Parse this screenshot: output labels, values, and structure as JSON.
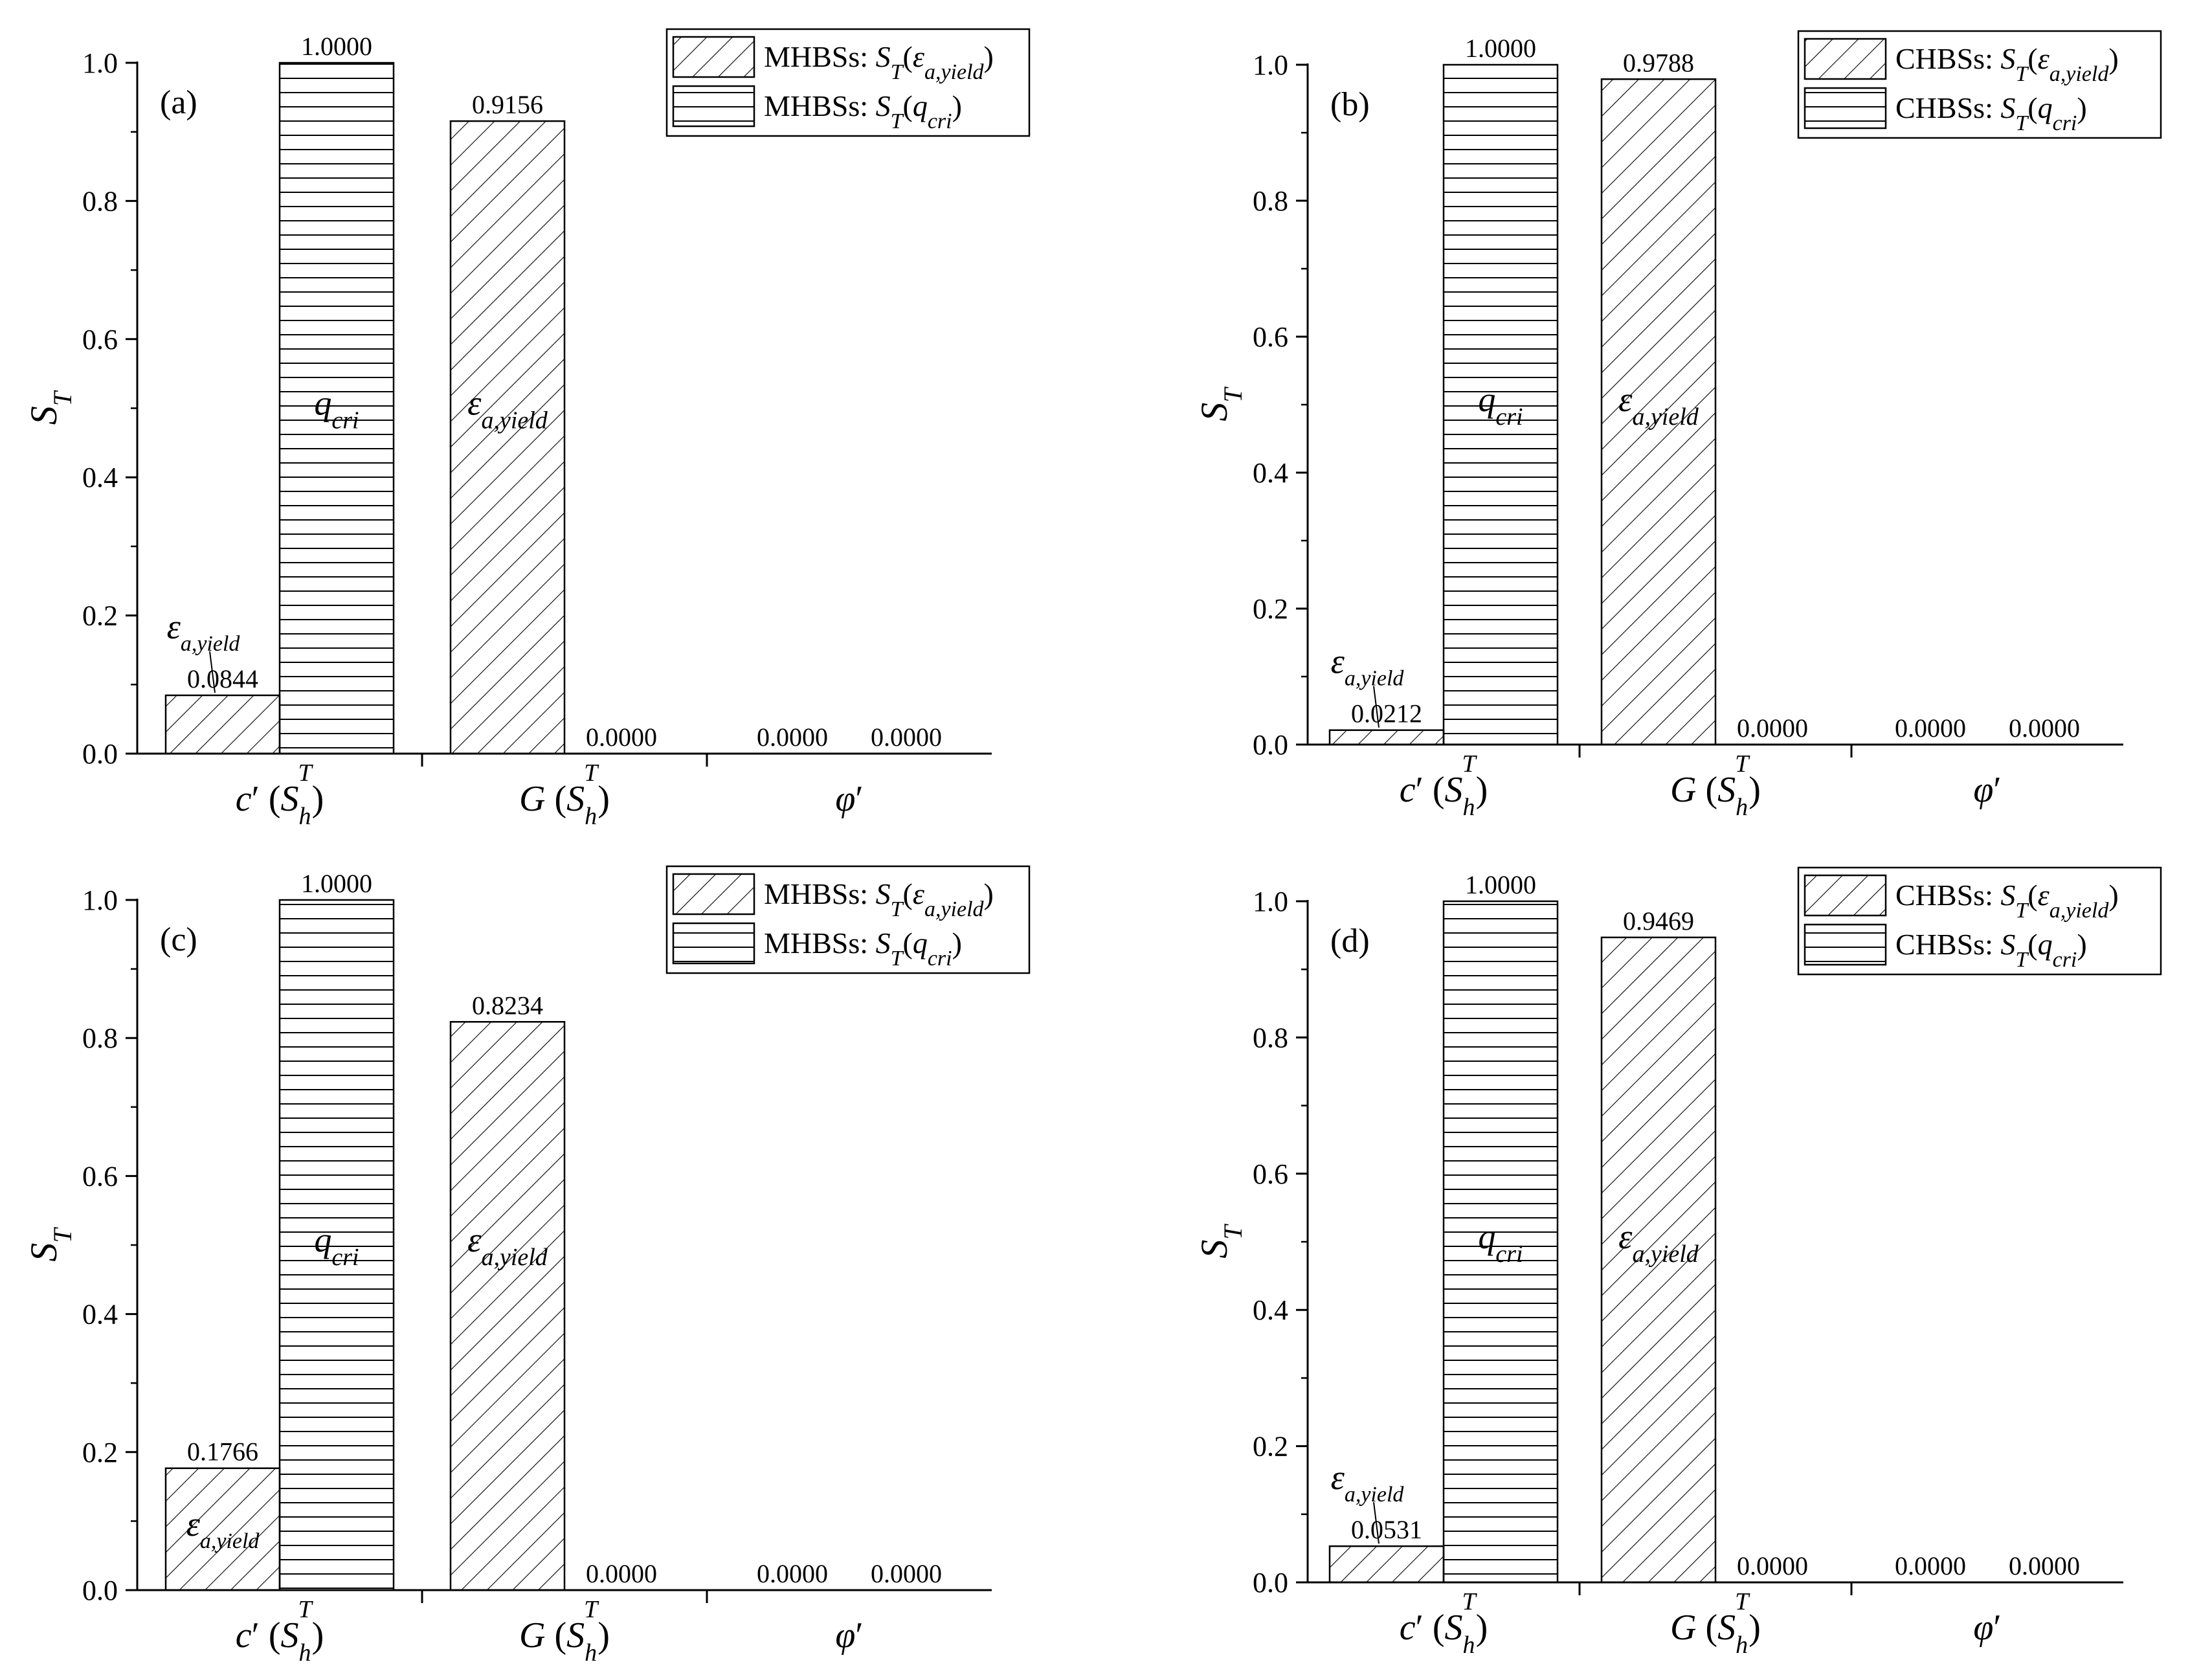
{
  "chart_data": [
    {
      "type": "bar",
      "panel_label": "(a)",
      "categories": [
        "c′ (S_h^T)",
        "G (S_h^T)",
        "φ′"
      ],
      "series": [
        {
          "name": "MHBSs: S_T(ε_a,yield)",
          "values": [
            0.0844,
            0.9156,
            0.0
          ],
          "pattern": "diagonal-hatch"
        },
        {
          "name": "MHBSs: S_T(q_cri)",
          "values": [
            1.0,
            0.0,
            0.0
          ],
          "pattern": "horizontal-hatch"
        }
      ],
      "value_labels": [
        [
          "0.0844",
          "0.9156",
          "0.0000"
        ],
        [
          "1.0000",
          "0.0000",
          "0.0000"
        ]
      ],
      "ylabel": "S_T",
      "ylim": [
        0,
        1.0
      ],
      "yticks": [
        "0.0",
        "0.2",
        "0.4",
        "0.6",
        "0.8",
        "1.0"
      ],
      "legend_position": "top-right",
      "annotations": [
        "εa,yield",
        "qcri",
        "εa,yield"
      ]
    },
    {
      "type": "bar",
      "panel_label": "(b)",
      "categories": [
        "c′ (S_h^T)",
        "G (S_h^T)",
        "φ′"
      ],
      "series": [
        {
          "name": "CHBSs: S_T(ε_a,yield)",
          "values": [
            0.0212,
            0.9788,
            0.0
          ],
          "pattern": "diagonal-hatch"
        },
        {
          "name": "CHBSs: S_T(q_cri)",
          "values": [
            1.0,
            0.0,
            0.0
          ],
          "pattern": "horizontal-hatch"
        }
      ],
      "value_labels": [
        [
          "0.0212",
          "0.9788",
          "0.0000"
        ],
        [
          "1.0000",
          "0.0000",
          "0.0000"
        ]
      ],
      "ylabel": "S_T",
      "ylim": [
        0,
        1.0
      ],
      "yticks": [
        "0.0",
        "0.2",
        "0.4",
        "0.6",
        "0.8",
        "1.0"
      ],
      "legend_position": "top-right",
      "annotations": [
        "εa,yield",
        "qcri",
        "εa,yield"
      ]
    },
    {
      "type": "bar",
      "panel_label": "(c)",
      "categories": [
        "c′ (S_h^T)",
        "G (S_h^T)",
        "φ′"
      ],
      "series": [
        {
          "name": "MHBSs: S_T(ε_a,yield)",
          "values": [
            0.1766,
            0.8234,
            0.0
          ],
          "pattern": "diagonal-hatch"
        },
        {
          "name": "MHBSs: S_T(q_cri)",
          "values": [
            1.0,
            0.0,
            0.0
          ],
          "pattern": "horizontal-hatch"
        }
      ],
      "value_labels": [
        [
          "0.1766",
          "0.8234",
          "0.0000"
        ],
        [
          "1.0000",
          "0.0000",
          "0.0000"
        ]
      ],
      "ylabel": "S_T",
      "ylim": [
        0,
        1.0
      ],
      "yticks": [
        "0.0",
        "0.2",
        "0.4",
        "0.6",
        "0.8",
        "1.0"
      ],
      "legend_position": "top-right",
      "annotations": [
        "εa,yield",
        "qcri",
        "εa,yield"
      ]
    },
    {
      "type": "bar",
      "panel_label": "(d)",
      "categories": [
        "c′ (S_h^T)",
        "G (S_h^T)",
        "φ′"
      ],
      "series": [
        {
          "name": "CHBSs: S_T(ε_a,yield)",
          "values": [
            0.0531,
            0.9469,
            0.0
          ],
          "pattern": "diagonal-hatch"
        },
        {
          "name": "CHBSs: S_T(q_cri)",
          "values": [
            1.0,
            0.0,
            0.0
          ],
          "pattern": "horizontal-hatch"
        }
      ],
      "value_labels": [
        [
          "0.0531",
          "0.9469",
          "0.0000"
        ],
        [
          "1.0000",
          "0.0000",
          "0.0000"
        ]
      ],
      "ylabel": "S_T",
      "ylim": [
        0,
        1.0
      ],
      "yticks": [
        "0.0",
        "0.2",
        "0.4",
        "0.6",
        "0.8",
        "1.0"
      ],
      "legend_position": "top-right",
      "annotations": [
        "εa,yield",
        "qcri",
        "εa,yield"
      ]
    }
  ],
  "legend_parts": {
    "mhbs_prefix": "MHBSs: ",
    "chbs_prefix": "CHBSs: "
  },
  "colors": {
    "bar_fill": "#ffffff",
    "ink": "#000000"
  }
}
